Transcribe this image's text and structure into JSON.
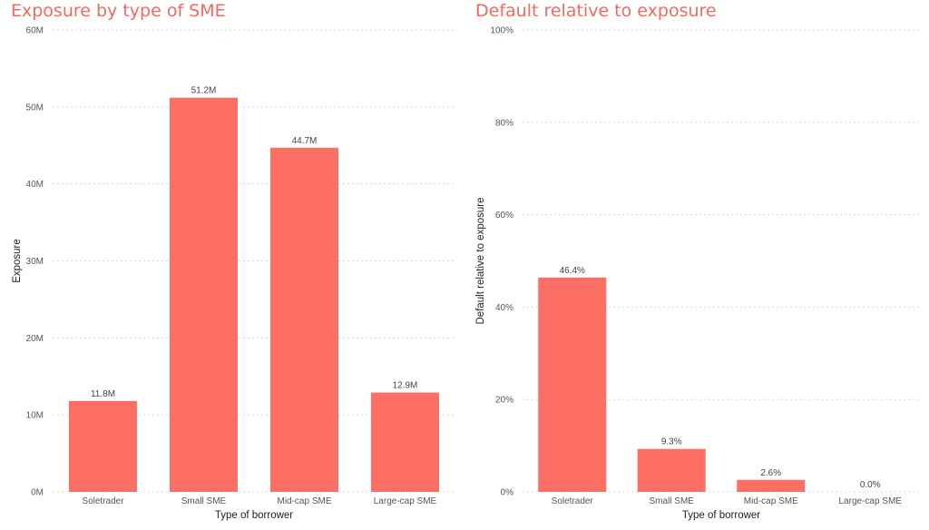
{
  "chart_data": [
    {
      "type": "bar",
      "title": "Exposure by type of SME",
      "xlabel": "Type of borrower",
      "ylabel": "Exposure",
      "categories": [
        "Soletrader",
        "Small SME",
        "Mid-cap SME",
        "Large-cap SME"
      ],
      "values": [
        11.8,
        51.2,
        44.7,
        12.9
      ],
      "data_labels": [
        "11.8M",
        "51.2M",
        "44.7M",
        "12.9M"
      ],
      "ylim": [
        0,
        60
      ],
      "yticks": [
        0,
        10,
        20,
        30,
        40,
        50,
        60
      ],
      "ytick_labels": [
        "0M",
        "10M",
        "20M",
        "30M",
        "40M",
        "50M",
        "60M"
      ],
      "grid": true,
      "bar_color": "#fd6f65"
    },
    {
      "type": "bar",
      "title": "Default relative to exposure",
      "xlabel": "Type of borrower",
      "ylabel": "Default relative to exposure",
      "categories": [
        "Soletrader",
        "Small SME",
        "Mid-cap SME",
        "Large-cap SME"
      ],
      "values": [
        46.4,
        9.3,
        2.6,
        0.0
      ],
      "data_labels": [
        "46.4%",
        "9.3%",
        "2.6%",
        "0.0%"
      ],
      "ylim": [
        0,
        100
      ],
      "yticks": [
        0,
        20,
        40,
        60,
        80,
        100
      ],
      "ytick_labels": [
        "0%",
        "20%",
        "40%",
        "60%",
        "80%",
        "100%"
      ],
      "grid": true,
      "bar_color": "#fd6f65"
    }
  ]
}
